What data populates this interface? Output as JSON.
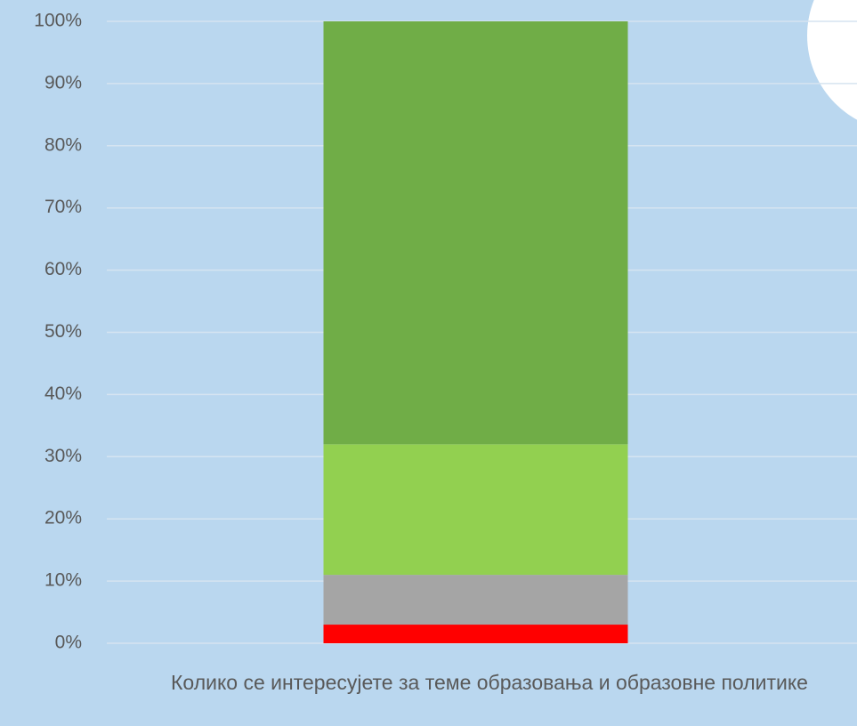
{
  "chart_data": {
    "type": "stacked_bar",
    "categories": [
      "Колико се интересујете за теме образовања и образовне политике"
    ],
    "series": [
      {
        "color": "#ff0000",
        "values": [
          3
        ]
      },
      {
        "color": "#a5a5a5",
        "values": [
          8
        ]
      },
      {
        "color": "#92d050",
        "values": [
          21
        ]
      },
      {
        "color": "#70ad47",
        "values": [
          68
        ]
      }
    ],
    "ylim": [
      0,
      100
    ],
    "yticks": [
      {
        "value": 0,
        "label": "0%"
      },
      {
        "value": 10,
        "label": "10%"
      },
      {
        "value": 20,
        "label": "20%"
      },
      {
        "value": 30,
        "label": "30%"
      },
      {
        "value": 40,
        "label": "40%"
      },
      {
        "value": 50,
        "label": "50%"
      },
      {
        "value": 60,
        "label": "60%"
      },
      {
        "value": 70,
        "label": "70%"
      },
      {
        "value": 80,
        "label": "80%"
      },
      {
        "value": 90,
        "label": "90%"
      },
      {
        "value": 100,
        "label": "100%"
      }
    ],
    "grid": true
  }
}
